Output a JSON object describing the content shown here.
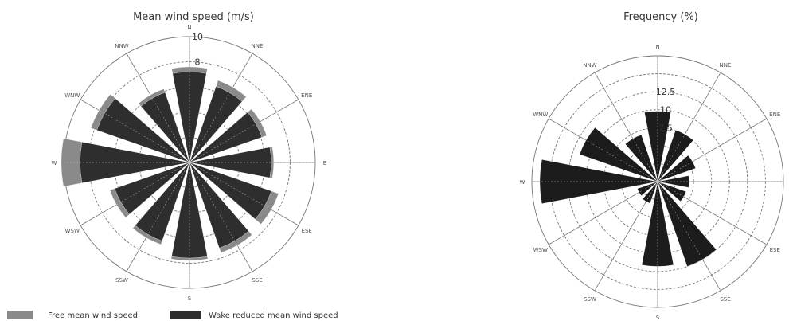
{
  "chart_data": [
    {
      "type": "rose",
      "title": "Mean wind speed (m/s)",
      "directions": [
        "N",
        "NNE",
        "ENE",
        "E",
        "ESE",
        "SSE",
        "S",
        "SSW",
        "WSW",
        "W",
        "WNW",
        "NNW"
      ],
      "rmax": 10,
      "radial_ticks": [
        2,
        4,
        6,
        8,
        10
      ],
      "radial_tick_labels": [
        "8",
        "10"
      ],
      "grid": true,
      "legend_position": "bottom-left",
      "series": [
        {
          "name": "Free mean wind speed",
          "color": "#8a8a8a",
          "values": [
            7.6,
            6.9,
            6.5,
            6.7,
            7.5,
            7.6,
            7.8,
            6.9,
            6.7,
            10.2,
            8.3,
            6.2
          ]
        },
        {
          "name": "Wake reduced mean wind speed",
          "color": "#2e2e2e",
          "values": [
            7.2,
            6.4,
            6.1,
            6.5,
            6.9,
            7.2,
            7.6,
            6.6,
            6.3,
            8.7,
            7.8,
            5.9
          ]
        }
      ]
    },
    {
      "type": "rose",
      "title": "Frequency (%)",
      "directions": [
        "N",
        "NNE",
        "ENE",
        "E",
        "ESE",
        "SSE",
        "S",
        "SSW",
        "WSW",
        "W",
        "WNW",
        "NNW"
      ],
      "rmax": 17.5,
      "radial_ticks": [
        2.5,
        5,
        7.5,
        10,
        12.5,
        15,
        17.5
      ],
      "radial_tick_labels": [
        "7.5",
        "10",
        "12.5"
      ],
      "grid": true,
      "series": [
        {
          "name": "Frequency",
          "color": "#1c1c1c",
          "values": [
            9.8,
            7.6,
            5.6,
            4.4,
            4.2,
            12.5,
            11.8,
            3.2,
            3.0,
            16.4,
            11.5,
            6.9
          ]
        }
      ]
    }
  ]
}
